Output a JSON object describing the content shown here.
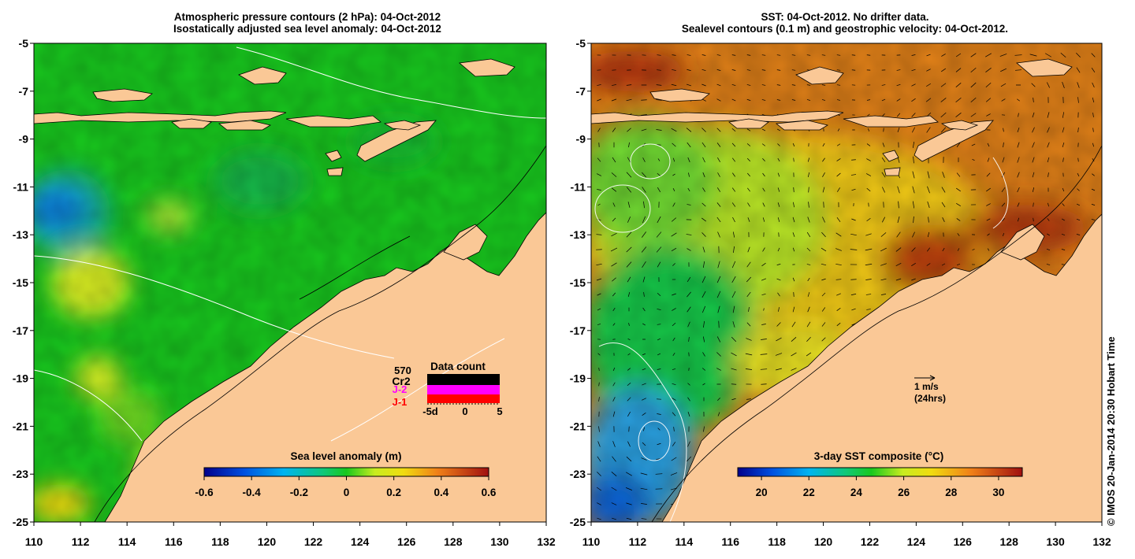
{
  "left_panel": {
    "title_line1": "Atmospheric pressure contours (2 hPa): 04-Oct-2012",
    "title_line2": "Isostatically adjusted sea level anomaly: 04-Oct-2012",
    "colorbar": {
      "title": "Sea level anomaly (m)",
      "tick_labels": [
        "-0.6",
        "-0.4",
        "-0.2",
        "0",
        "0.2",
        "0.4",
        "0.6"
      ],
      "range": [
        -0.6,
        0.6
      ]
    },
    "data_count_inset": {
      "title": "Data count",
      "max_label": "570",
      "series": [
        {
          "name": "Cr2",
          "color": "#000000"
        },
        {
          "name": "J-2",
          "color": "#ff00ff"
        },
        {
          "name": "J-1",
          "color": "#ff0000"
        }
      ],
      "x_tick_labels": [
        "-5d",
        "0",
        "5"
      ]
    }
  },
  "right_panel": {
    "title_line1": "SST: 04-Oct-2012. No drifter data.",
    "title_line2": "Sealevel contours (0.1 m) and geostrophic velocity: 04-Oct-2012.",
    "colorbar": {
      "title": "3-day SST composite (°C)",
      "tick_labels": [
        "20",
        "22",
        "24",
        "26",
        "28",
        "30"
      ],
      "range": [
        19,
        31
      ]
    },
    "velocity_legend": {
      "line1": "1 m/s",
      "line2": "(24hrs)"
    }
  },
  "axes": {
    "lon_tick_labels": [
      "110",
      "112",
      "114",
      "116",
      "118",
      "120",
      "122",
      "124",
      "126",
      "128",
      "130",
      "132"
    ],
    "lat_tick_labels": [
      "-5",
      "-7",
      "-9",
      "-11",
      "-13",
      "-15",
      "-17",
      "-19",
      "-21",
      "-23",
      "-25"
    ],
    "lon_range": [
      110,
      132
    ],
    "lat_range": [
      -25,
      -5
    ]
  },
  "colors": {
    "land": "#fac896",
    "ocean_sla": "#18c81e",
    "ocean_sst_warm": "#e07818",
    "ocean_sst_cool": "#2aa0e0"
  },
  "credit": "© IMOS 20-Jan-2014 20:30 Hobart Time"
}
